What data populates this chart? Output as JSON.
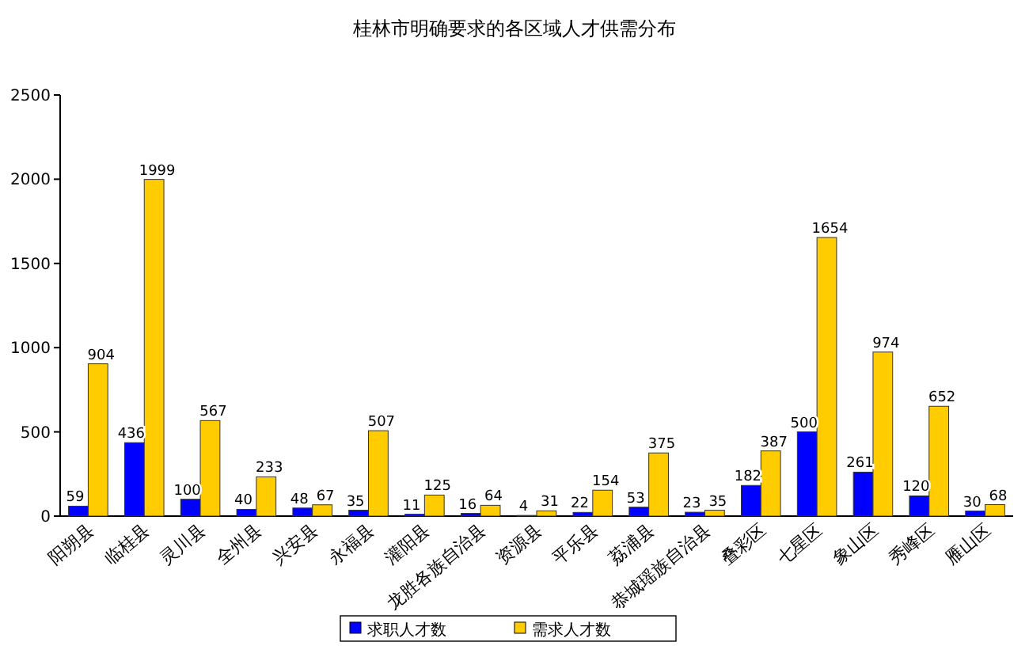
{
  "chart_data": {
    "type": "bar",
    "title": "桂林市明确要求的各区域人才供需分布",
    "categories": [
      "阳朔县",
      "临桂县",
      "灵川县",
      "全州县",
      "兴安县",
      "永福县",
      "灌阳县",
      "龙胜各族自治县",
      "资源县",
      "平乐县",
      "荔浦县",
      "恭城瑶族自治县",
      "叠彩区",
      "七星区",
      "象山区",
      "秀峰区",
      "雁山区"
    ],
    "series": [
      {
        "name": "求职人才数",
        "color": "#0000ff",
        "values": [
          59,
          436,
          100,
          40,
          48,
          35,
          11,
          16,
          4,
          22,
          53,
          23,
          182,
          500,
          261,
          120,
          30
        ]
      },
      {
        "name": "需求人才数",
        "color": "#ffcc00",
        "values": [
          904,
          1999,
          567,
          233,
          67,
          507,
          125,
          64,
          31,
          154,
          375,
          35,
          387,
          1654,
          974,
          652,
          68
        ]
      }
    ],
    "ylim": [
      0,
      2500
    ],
    "yticks": [
      0,
      500,
      1000,
      1500,
      2000,
      2500
    ],
    "data_labels": true,
    "legend": "bottom"
  }
}
